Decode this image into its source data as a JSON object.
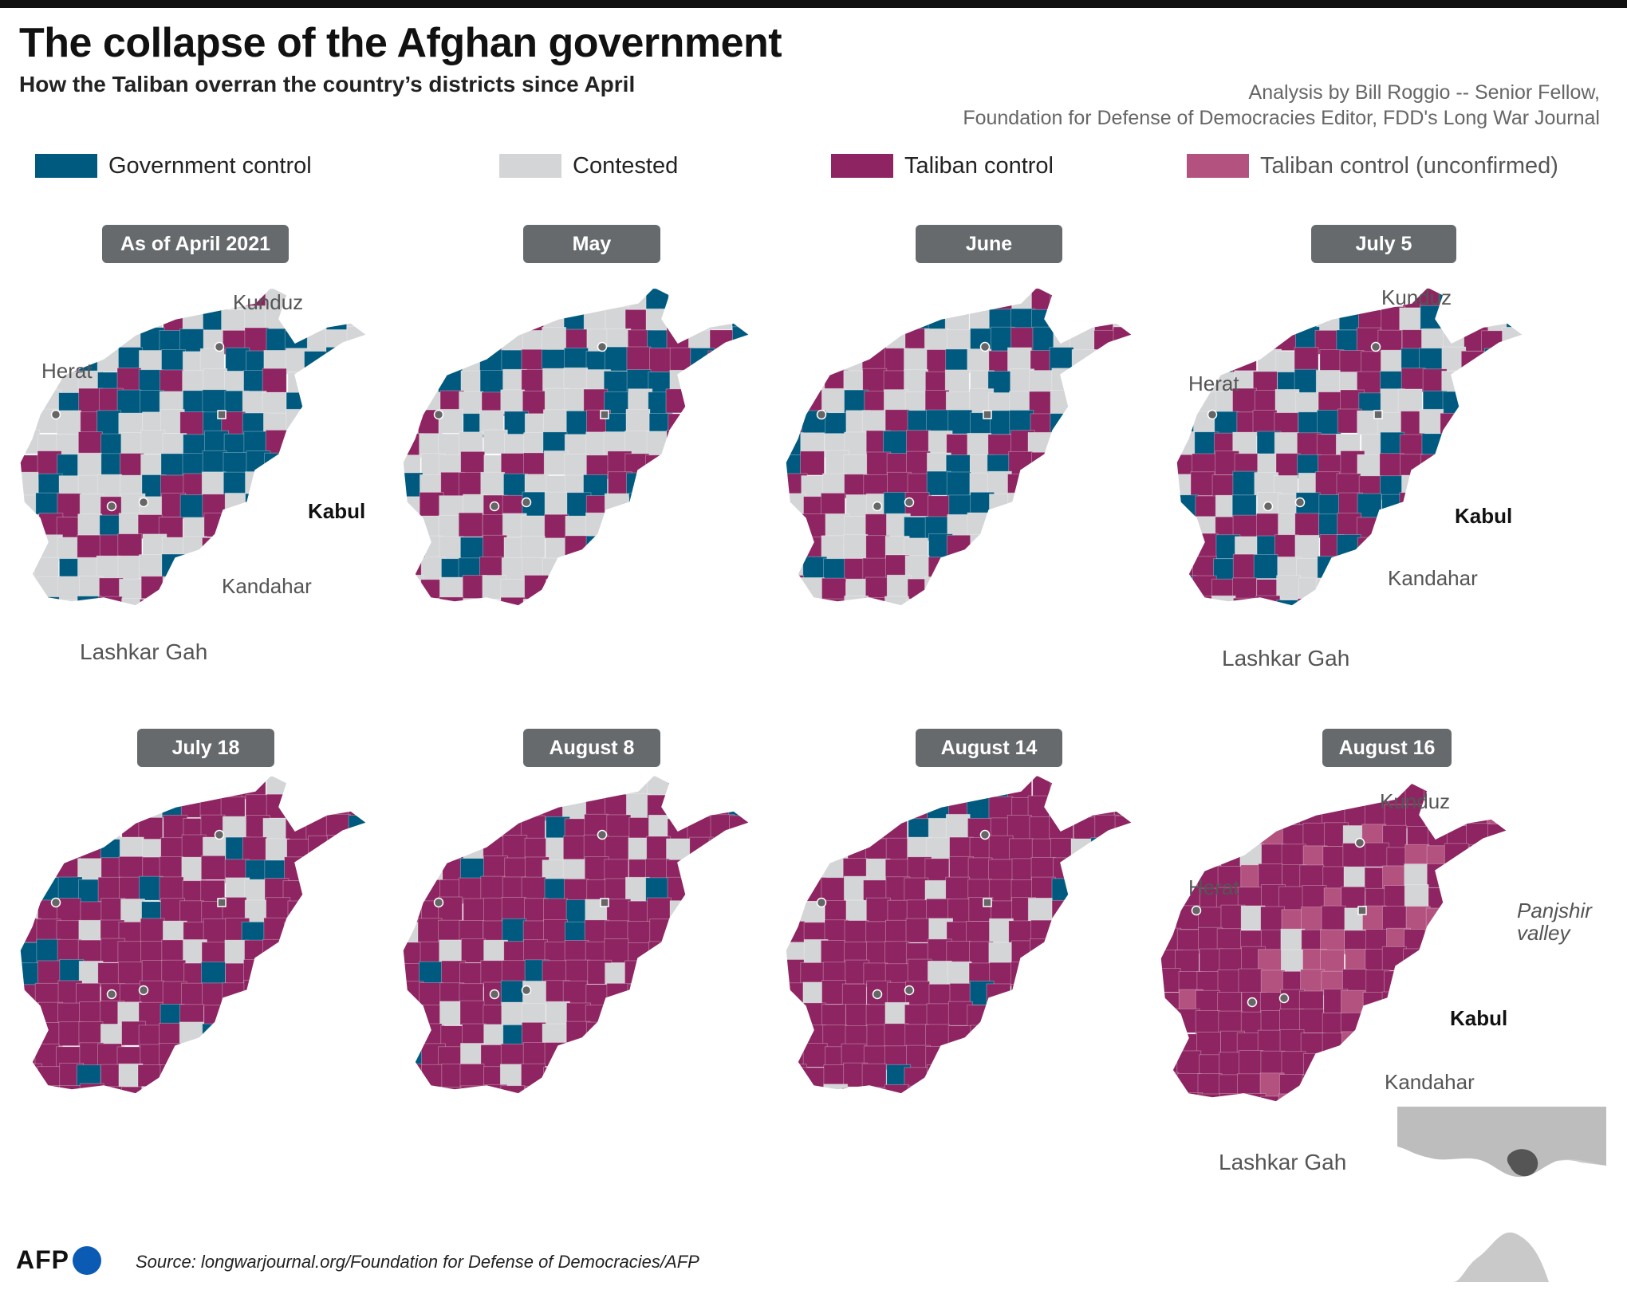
{
  "title": "The collapse of the Afghan government",
  "subtitle": "How the Taliban overran the country’s districts since April",
  "credit": {
    "line1": "Analysis by Bill Roggio -- Senior Fellow,",
    "line2": "Foundation for Defense of Democracies Editor, FDD's Long War Journal"
  },
  "legend": [
    {
      "label": "Government control",
      "color": "#005a7f"
    },
    {
      "label": "Contested",
      "color": "#d4d5d7"
    },
    {
      "label": "Taliban control",
      "color": "#8e2562"
    },
    {
      "label": "Taliban control (unconfirmed)",
      "color": "#b3517f"
    }
  ],
  "panels": [
    {
      "date": "As of April 2021",
      "shares": {
        "government": 0.3,
        "contested": 0.44,
        "taliban": 0.26,
        "unconfirmed": 0
      }
    },
    {
      "date": "May",
      "shares": {
        "government": 0.28,
        "contested": 0.44,
        "taliban": 0.28,
        "unconfirmed": 0
      }
    },
    {
      "date": "June",
      "shares": {
        "government": 0.24,
        "contested": 0.38,
        "taliban": 0.38,
        "unconfirmed": 0
      }
    },
    {
      "date": "July 5",
      "shares": {
        "government": 0.2,
        "contested": 0.3,
        "taliban": 0.5,
        "unconfirmed": 0
      }
    },
    {
      "date": "July 18",
      "shares": {
        "government": 0.13,
        "contested": 0.2,
        "taliban": 0.67,
        "unconfirmed": 0
      }
    },
    {
      "date": "August 8",
      "shares": {
        "government": 0.1,
        "contested": 0.17,
        "taliban": 0.73,
        "unconfirmed": 0
      }
    },
    {
      "date": "August 14",
      "shares": {
        "government": 0.07,
        "contested": 0.1,
        "taliban": 0.83,
        "unconfirmed": 0
      }
    },
    {
      "date": "August 16",
      "shares": {
        "government": 0,
        "contested": 0.02,
        "taliban": 0.8,
        "unconfirmed": 0.18
      }
    }
  ],
  "cities": {
    "herat": "Herat",
    "kunduz": "Kunduz",
    "kabul": "Kabul",
    "kandahar": "Kandahar",
    "lashkar_gah": "Lashkar Gah",
    "panjshir_line1": "Panjshir",
    "panjshir_line2": "valley"
  },
  "footer": {
    "logo": "AFP",
    "source": "Source: longwarjournal.org/Foundation for Defense of Democracies/AFP"
  }
}
